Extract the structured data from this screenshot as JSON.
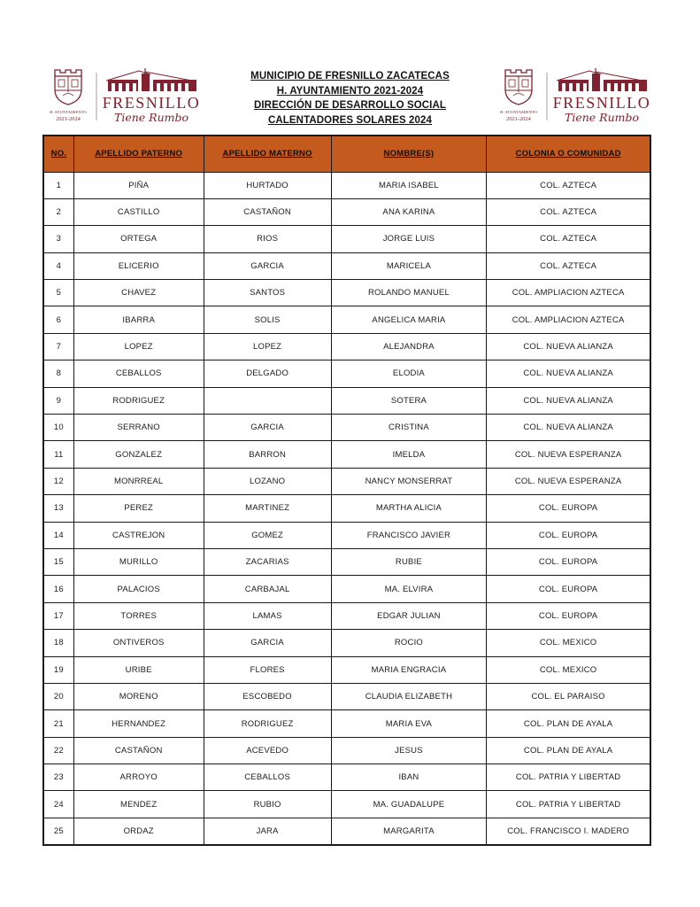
{
  "colors": {
    "accent_orange": "#C55A1E",
    "logo_maroon": "#82212F",
    "border_black": "#1a1a1a"
  },
  "header": {
    "title_lines": [
      "MUNICIPIO DE FRESNILLO ZACATECAS",
      "H. AYUNTAMIENTO 2021-2024",
      "DIRECCIÓN DE DESARROLLO SOCIAL",
      "CALENTADORES SOLARES 2024"
    ],
    "logo": {
      "wordmark": "FRESNILLO",
      "tagline": "Tiene Rumbo",
      "crest_caption_line1": "H. AYUNTAMIENTO",
      "crest_caption_line2": "2021-2024"
    }
  },
  "table": {
    "columns": [
      "NO.",
      "APELLIDO PATERNO",
      "APELLIDO MATERNO",
      "NOMBRE(S)",
      "COLONIA O COMUNIDAD"
    ],
    "rows": [
      [
        "1",
        "PIÑA",
        "HURTADO",
        "MARIA ISABEL",
        "COL. AZTECA"
      ],
      [
        "2",
        "CASTILLO",
        "CASTAÑON",
        "ANA KARINA",
        "COL. AZTECA"
      ],
      [
        "3",
        "ORTEGA",
        "RIOS",
        "JORGE LUIS",
        "COL. AZTECA"
      ],
      [
        "4",
        "ELICERIO",
        "GARCIA",
        "MARICELA",
        "COL. AZTECA"
      ],
      [
        "5",
        "CHAVEZ",
        "SANTOS",
        "ROLANDO MANUEL",
        "COL. AMPLIACION AZTECA"
      ],
      [
        "6",
        "IBARRA",
        "SOLIS",
        "ANGELICA MARIA",
        "COL. AMPLIACION AZTECA"
      ],
      [
        "7",
        "LOPEZ",
        "LOPEZ",
        "ALEJANDRA",
        "COL. NUEVA ALIANZA"
      ],
      [
        "8",
        "CEBALLOS",
        "DELGADO",
        "ELODIA",
        "COL. NUEVA ALIANZA"
      ],
      [
        "9",
        "RODRIGUEZ",
        "",
        "SOTERA",
        "COL. NUEVA ALIANZA"
      ],
      [
        "10",
        "SERRANO",
        "GARCIA",
        "CRISTINA",
        "COL. NUEVA ALIANZA"
      ],
      [
        "11",
        "GONZALEZ",
        "BARRON",
        "IMELDA",
        "COL. NUEVA ESPERANZA"
      ],
      [
        "12",
        "MONRREAL",
        "LOZANO",
        "NANCY MONSERRAT",
        "COL. NUEVA ESPERANZA"
      ],
      [
        "13",
        "PEREZ",
        "MARTINEZ",
        "MARTHA ALICIA",
        "COL. EUROPA"
      ],
      [
        "14",
        "CASTREJON",
        "GOMEZ",
        "FRANCISCO JAVIER",
        "COL. EUROPA"
      ],
      [
        "15",
        "MURILLO",
        "ZACARIAS",
        "RUBIE",
        "COL. EUROPA"
      ],
      [
        "16",
        "PALACIOS",
        "CARBAJAL",
        "MA. ELVIRA",
        "COL. EUROPA"
      ],
      [
        "17",
        "TORRES",
        "LAMAS",
        "EDGAR JULIAN",
        "COL. EUROPA"
      ],
      [
        "18",
        "ONTIVEROS",
        "GARCIA",
        "ROCIO",
        "COL. MEXICO"
      ],
      [
        "19",
        "URIBE",
        "FLORES",
        "MARIA ENGRACIA",
        "COL. MEXICO"
      ],
      [
        "20",
        "MORENO",
        "ESCOBEDO",
        "CLAUDIA ELIZABETH",
        "COL. EL PARAISO"
      ],
      [
        "21",
        "HERNANDEZ",
        "RODRIGUEZ",
        "MARIA EVA",
        "COL. PLAN DE AYALA"
      ],
      [
        "22",
        "CASTAÑON",
        "ACEVEDO",
        "JESUS",
        "COL. PLAN DE AYALA"
      ],
      [
        "23",
        "ARROYO",
        "CEBALLOS",
        "IBAN",
        "COL. PATRIA Y LIBERTAD"
      ],
      [
        "24",
        "MENDEZ",
        "RUBIO",
        "MA. GUADALUPE",
        "COL. PATRIA Y LIBERTAD"
      ],
      [
        "25",
        "ORDAZ",
        "JARA",
        "MARGARITA",
        "COL. FRANCISCO I. MADERO"
      ]
    ]
  }
}
